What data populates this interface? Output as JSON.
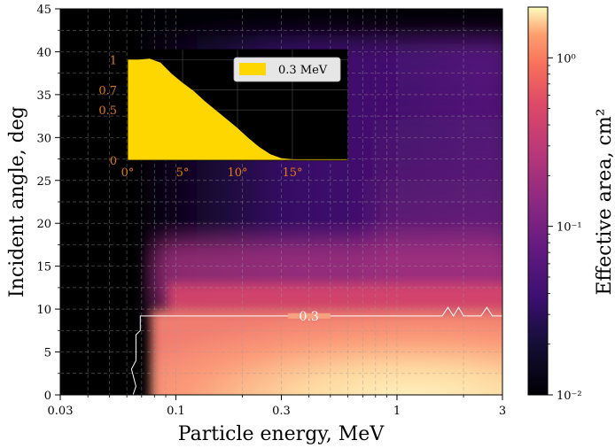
{
  "chart_data": {
    "type": "heatmap",
    "xlabel": "Particle energy, MeV",
    "ylabel": "Incident angle, deg",
    "xscale": "log",
    "xlim": [
      0.03,
      3
    ],
    "ylim": [
      0,
      45
    ],
    "grid": true,
    "colormap": "magma",
    "x_ticks": [
      {
        "value": 0.03,
        "label": "0.03"
      },
      {
        "value": 0.1,
        "label": "0.1"
      },
      {
        "value": 0.3,
        "label": "0.3"
      },
      {
        "value": 1,
        "label": "1"
      },
      {
        "value": 3,
        "label": "3"
      }
    ],
    "y_ticks": [
      {
        "value": 0,
        "label": "0"
      },
      {
        "value": 5,
        "label": "5"
      },
      {
        "value": 10,
        "label": "10"
      },
      {
        "value": 15,
        "label": "15"
      },
      {
        "value": 20,
        "label": "20"
      },
      {
        "value": 25,
        "label": "25"
      },
      {
        "value": 30,
        "label": "30"
      },
      {
        "value": 35,
        "label": "35"
      },
      {
        "value": 40,
        "label": "40"
      },
      {
        "value": 45,
        "label": "45"
      }
    ],
    "colorbar": {
      "label": "Effective area, cm²",
      "scale": "log",
      "range": [
        0.01,
        2
      ],
      "ticks": [
        {
          "value": 1,
          "label": "10⁰"
        },
        {
          "value": 0.1,
          "label": "10⁻¹"
        },
        {
          "value": 0.01,
          "label": "10⁻²"
        }
      ]
    },
    "contour": {
      "level": 0.3,
      "label": "0.3",
      "points": [
        [
          0.064,
          0
        ],
        [
          0.066,
          1
        ],
        [
          0.063,
          3
        ],
        [
          0.066,
          4
        ],
        [
          0.066,
          7
        ],
        [
          0.069,
          7.5
        ],
        [
          0.069,
          9.2
        ],
        [
          0.3,
          9.2
        ],
        [
          0.6,
          9.2
        ],
        [
          1.6,
          9.2
        ],
        [
          1.7,
          10.2
        ],
        [
          1.8,
          9.2
        ],
        [
          1.9,
          10.2
        ],
        [
          2.0,
          9.2
        ],
        [
          2.4,
          9.2
        ],
        [
          2.55,
          10.2
        ],
        [
          2.7,
          9.2
        ],
        [
          3,
          9.2
        ]
      ]
    },
    "inset": {
      "type": "area",
      "legend": "0.3 MeV",
      "color": "#ffd700",
      "x_ticks": [
        {
          "value": 0,
          "label": "0°"
        },
        {
          "value": 5,
          "label": "5°"
        },
        {
          "value": 10,
          "label": "10°"
        },
        {
          "value": 15,
          "label": "15°"
        }
      ],
      "y_ticks": [
        {
          "value": 0,
          "label": "0"
        },
        {
          "value": 0.5,
          "label": "0.5"
        },
        {
          "value": 0.7,
          "label": "0.7"
        },
        {
          "value": 1,
          "label": "1"
        }
      ],
      "xlim": [
        0,
        20
      ],
      "ylim": [
        0,
        1.1
      ],
      "x": [
        0,
        1,
        2,
        3,
        4,
        5,
        6,
        7,
        8,
        9,
        10,
        11,
        12,
        13,
        14,
        15,
        16,
        17,
        18,
        19,
        20
      ],
      "y": [
        1.0,
        1.0,
        1.01,
        0.97,
        0.86,
        0.77,
        0.69,
        0.59,
        0.5,
        0.41,
        0.32,
        0.22,
        0.13,
        0.06,
        0.02,
        0.01,
        0.01,
        0.01,
        0.01,
        0.01,
        0.01
      ]
    }
  }
}
